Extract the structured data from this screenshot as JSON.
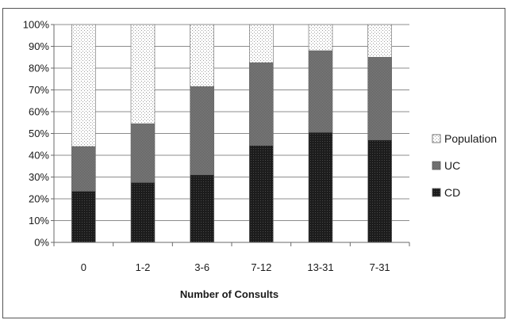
{
  "chart_data": {
    "type": "bar",
    "stacked": true,
    "normalized": true,
    "categories": [
      "0",
      "1-2",
      "3-6",
      "7-12",
      "13-31",
      "7-31"
    ],
    "series": [
      {
        "name": "CD",
        "values": [
          23.5,
          27.5,
          31,
          44.5,
          50.5,
          47
        ],
        "color": "#202020",
        "pattern": "dense-dark"
      },
      {
        "name": "UC",
        "values": [
          20.5,
          27,
          40.5,
          38,
          37.5,
          38
        ],
        "color": "#6e6e6e",
        "pattern": "grey-checker"
      },
      {
        "name": "Population",
        "values": [
          56,
          45.5,
          28.5,
          17.5,
          12,
          15
        ],
        "color": "#ffffff",
        "pattern": "sparse-dots"
      }
    ],
    "yticks": [
      "0%",
      "10%",
      "20%",
      "30%",
      "40%",
      "50%",
      "60%",
      "70%",
      "80%",
      "90%",
      "100%"
    ],
    "ylim": [
      0,
      100
    ],
    "xlabel": "Number of Consults",
    "ylabel": "",
    "title": "",
    "grid": true,
    "legend_position": "right",
    "legend_order": [
      "Population",
      "UC",
      "CD"
    ]
  }
}
